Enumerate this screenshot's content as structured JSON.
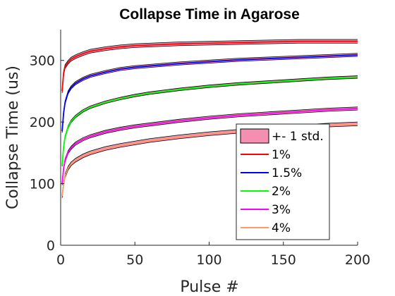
{
  "chart_data": {
    "type": "line",
    "title": "Collapse Time in Agarose",
    "xlabel": "Pulse #",
    "ylabel": "Collapse Time (us)",
    "xlim": [
      0,
      200
    ],
    "ylim": [
      0,
      350
    ],
    "xticks": [
      0,
      50,
      100,
      150,
      200
    ],
    "yticks": [
      0,
      100,
      200,
      300
    ],
    "grid": false,
    "legend_position": "lower-right",
    "band_label": "+- 1 std.",
    "band_color": "#f48fb1",
    "x": [
      1,
      2,
      3,
      5,
      7,
      10,
      15,
      20,
      30,
      40,
      50,
      60,
      80,
      100,
      120,
      140,
      160,
      180,
      200
    ],
    "series": [
      {
        "name": "1%",
        "color": "#ff0000",
        "std": 3,
        "values": [
          250,
          280,
          290,
          297,
          302,
          306,
          311,
          315,
          319,
          322,
          324,
          325,
          327,
          328,
          329,
          330,
          331,
          331,
          331
        ]
      },
      {
        "name": "1.5%",
        "color": "#0000ff",
        "std": 2.5,
        "values": [
          185,
          215,
          232,
          248,
          256,
          263,
          270,
          275,
          281,
          286,
          289,
          291,
          295,
          298,
          301,
          303,
          305,
          307,
          309
        ]
      },
      {
        "name": "2%",
        "color": "#00ff00",
        "std": 2,
        "values": [
          130,
          160,
          176,
          192,
          201,
          209,
          218,
          224,
          232,
          238,
          243,
          247,
          253,
          258,
          262,
          265,
          268,
          271,
          273
        ]
      },
      {
        "name": "3%",
        "color": "#ff00ff",
        "std": 2.5,
        "values": [
          100,
          125,
          138,
          151,
          158,
          165,
          172,
          177,
          184,
          189,
          193,
          196,
          202,
          207,
          211,
          214,
          217,
          220,
          222
        ]
      },
      {
        "name": "4%",
        "color": "#ff9966",
        "std": 3,
        "values": [
          80,
          100,
          113,
          125,
          132,
          138,
          145,
          150,
          157,
          162,
          166,
          170,
          176,
          181,
          185,
          189,
          192,
          195,
          197
        ]
      }
    ]
  }
}
